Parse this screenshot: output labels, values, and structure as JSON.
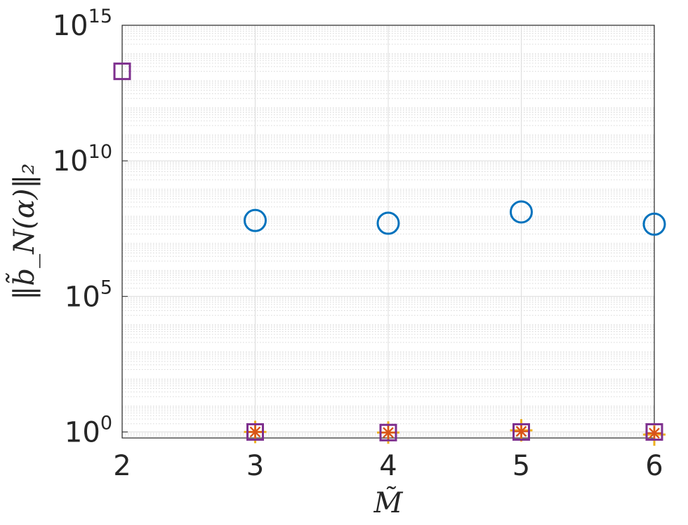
{
  "chart_data": {
    "type": "scatter",
    "title": "",
    "xlabel": "M̃",
    "ylabel": "‖b̃_N(α)‖₂",
    "x_ticks": [
      "2",
      "3",
      "4",
      "5",
      "6"
    ],
    "y_ticks": [
      {
        "base": "10",
        "exp": "0",
        "value": 1
      },
      {
        "base": "10",
        "exp": "5",
        "value": 100000
      },
      {
        "base": "10",
        "exp": "10",
        "value": 10000000000
      },
      {
        "base": "10",
        "exp": "15",
        "value": 1000000000000000
      }
    ],
    "xlim": [
      2,
      6
    ],
    "ylim": [
      0.6,
      1000000000000000.0
    ],
    "yscale": "log",
    "grid": true,
    "series": [
      {
        "marker": "circle",
        "color": "#0072BD",
        "points": [
          [
            3,
            63000000.0
          ],
          [
            4,
            50000000.0
          ],
          [
            5,
            130000000.0
          ],
          [
            6,
            46000000.0
          ]
        ]
      },
      {
        "marker": "plus",
        "color": "#EDB120",
        "points": [
          [
            3,
            1.0
          ],
          [
            4,
            0.95
          ],
          [
            5,
            1.15
          ],
          [
            6,
            0.8
          ]
        ]
      },
      {
        "marker": "asterisk",
        "color": "#D95319",
        "points": [
          [
            3,
            1.0
          ],
          [
            4,
            0.95
          ],
          [
            5,
            1.05
          ],
          [
            6,
            0.9
          ]
        ]
      },
      {
        "marker": "square",
        "color": "#7E2F8E",
        "points": [
          [
            2,
            20000000000000.0
          ],
          [
            3,
            1.0
          ],
          [
            4,
            0.95
          ],
          [
            5,
            1.0
          ],
          [
            6,
            1.0
          ]
        ]
      }
    ]
  }
}
